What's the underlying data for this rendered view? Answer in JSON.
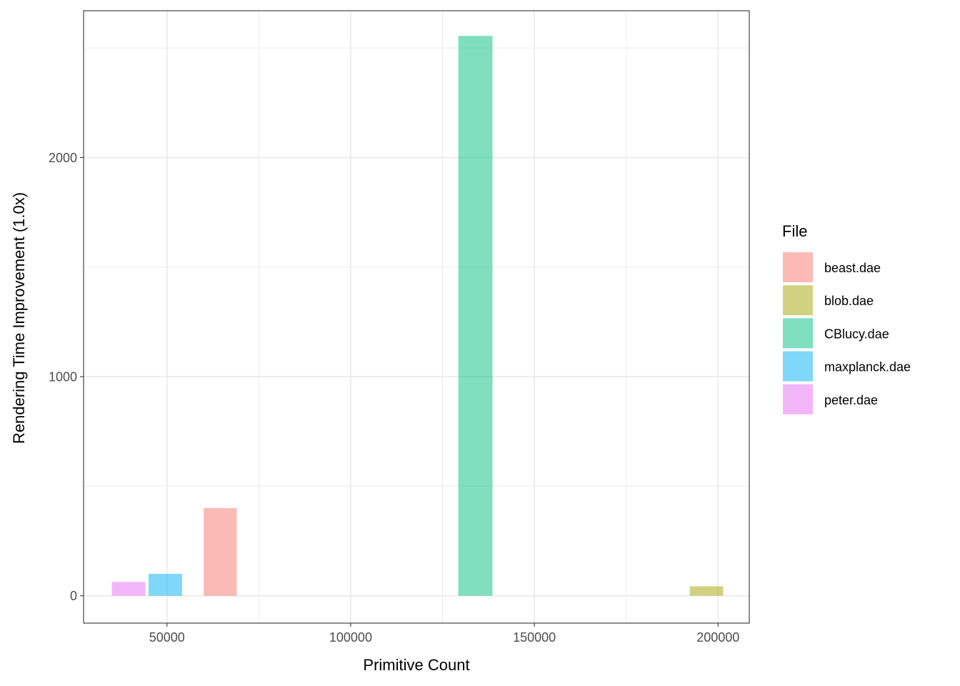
{
  "chart_data": {
    "type": "bar",
    "title": "",
    "xlabel": "Primitive Count",
    "ylabel": "Rendering Time Improvement (1.0x)",
    "xlim": [
      27300,
      208500
    ],
    "ylim": [
      -125,
      2670
    ],
    "x_ticks": [
      50000,
      100000,
      150000,
      200000
    ],
    "x_tick_labels": [
      "50000",
      "100000",
      "150000",
      "200000"
    ],
    "x_minor_ticks": [
      75000,
      125000,
      175000
    ],
    "y_ticks": [
      0,
      1000,
      2000
    ],
    "y_tick_labels": [
      "0",
      "1000",
      "2000"
    ],
    "y_minor_ticks": [
      500,
      1500,
      2500
    ],
    "grid": true,
    "bar_opacity": 0.5,
    "legend": {
      "title": "File",
      "position": "right",
      "entries": [
        "beast.dae",
        "blob.dae",
        "CBlucy.dae",
        "maxplanck.dae",
        "peter.dae"
      ]
    },
    "colors": {
      "beast.dae": "#F8766D",
      "blob.dae": "#A3A500",
      "CBlucy.dae": "#00BF7D",
      "maxplanck.dae": "#00B0F6",
      "peter.dae": "#E76BF3"
    },
    "series": [
      {
        "name": "peter.dae",
        "x_start": 35000,
        "x_end": 44100,
        "value": 63
      },
      {
        "name": "maxplanck.dae",
        "x_start": 45000,
        "x_end": 54100,
        "value": 100
      },
      {
        "name": "beast.dae",
        "x_start": 60000,
        "x_end": 69000,
        "value": 400
      },
      {
        "name": "CBlucy.dae",
        "x_start": 129300,
        "x_end": 138600,
        "value": 2555
      },
      {
        "name": "blob.dae",
        "x_start": 192300,
        "x_end": 201400,
        "value": 43
      }
    ]
  }
}
